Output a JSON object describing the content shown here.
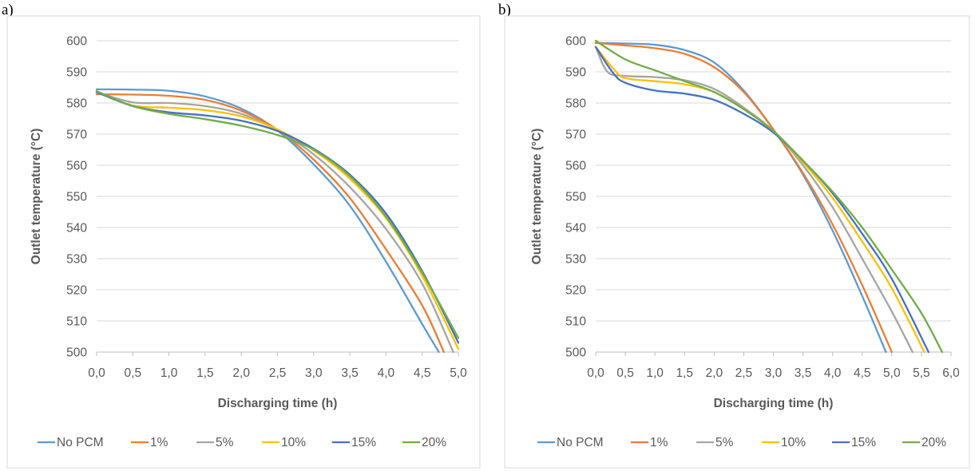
{
  "panels": [
    {
      "letter": "a)",
      "chart_data": {
        "type": "line",
        "title": "",
        "xlabel": "Discharging time (h)",
        "ylabel": "Outlet temperature (°C)",
        "xlim": [
          0,
          5
        ],
        "ylim": [
          500,
          600
        ],
        "xticks": [
          0,
          0.5,
          1,
          1.5,
          2,
          2.5,
          3,
          3.5,
          4,
          4.5,
          5
        ],
        "xtick_labels": [
          "0,0",
          "0,5",
          "1,0",
          "1,5",
          "2,0",
          "2,5",
          "3,0",
          "3,5",
          "4,0",
          "4,5",
          "5,0"
        ],
        "yticks": [
          500,
          510,
          520,
          530,
          540,
          550,
          560,
          570,
          580,
          590,
          600
        ],
        "ytick_labels": [
          "500",
          "510",
          "520",
          "530",
          "540",
          "550",
          "560",
          "570",
          "580",
          "590",
          "600"
        ],
        "grid": "horizontal",
        "legend_position": "bottom",
        "series": [
          {
            "name": "No PCM",
            "color": "#5b9bd5",
            "x": [
              0,
              0.5,
              1.0,
              1.5,
              2.0,
              2.5,
              3.0,
              3.5,
              4.0,
              4.5,
              4.73
            ],
            "y": [
              584.4,
              584.3,
              583.9,
              582.1,
              578.2,
              571.2,
              560.3,
              547.0,
              529.0,
              509.0,
              500
            ]
          },
          {
            "name": "1%",
            "color": "#ed7d31",
            "x": [
              0,
              0.5,
              1.0,
              1.5,
              2.0,
              2.5,
              3.0,
              3.5,
              4.0,
              4.5,
              4.8
            ],
            "y": [
              582.8,
              582.7,
              582.3,
              581.0,
              577.5,
              571.4,
              561.8,
              549.5,
              533.0,
              515.0,
              500
            ]
          },
          {
            "name": "5%",
            "color": "#a5a5a5",
            "x": [
              0,
              0.5,
              1.0,
              1.5,
              2.0,
              2.5,
              3.0,
              3.5,
              4.0,
              4.5,
              4.93
            ],
            "y": [
              583.5,
              580.2,
              580.0,
              579.0,
              576.5,
              571.2,
              563.5,
              553.0,
              539.5,
              522.0,
              500
            ]
          },
          {
            "name": "10%",
            "color": "#ffc000",
            "x": [
              0,
              0.5,
              1.0,
              1.5,
              2.0,
              2.5,
              3.0,
              3.5,
              4.0,
              4.5,
              5.0
            ],
            "y": [
              583.5,
              579.2,
              578.5,
              577.7,
              575.7,
              571.5,
              564.8,
              555.7,
              543.0,
              524.5,
              501
            ]
          },
          {
            "name": "15%",
            "color": "#4472c4",
            "x": [
              0,
              0.5,
              1.0,
              1.5,
              2.0,
              2.5,
              3.0,
              3.5,
              4.0,
              4.5,
              5.0
            ],
            "y": [
              583.5,
              579.0,
              577.0,
              576.0,
              574.3,
              571.0,
              565.3,
              557.0,
              544.5,
              526.0,
              503.0
            ]
          },
          {
            "name": "20%",
            "color": "#70ad47",
            "x": [
              0,
              0.5,
              1.0,
              1.5,
              2.0,
              2.5,
              3.0,
              3.5,
              4.0,
              4.5,
              5.0
            ],
            "y": [
              583.8,
              579.0,
              576.5,
              574.8,
              572.7,
              569.7,
              565.0,
              556.5,
              543.5,
              525.5,
              504.5
            ]
          }
        ]
      }
    },
    {
      "letter": "b)",
      "chart_data": {
        "type": "line",
        "title": "",
        "xlabel": "Discharging time (h)",
        "ylabel": "Outlet temperature (°C)",
        "xlim": [
          0,
          6
        ],
        "ylim": [
          500,
          600
        ],
        "xticks": [
          0,
          0.5,
          1,
          1.5,
          2,
          2.5,
          3,
          3.5,
          4,
          4.5,
          5,
          5.5,
          6
        ],
        "xtick_labels": [
          "0,0",
          "0,5",
          "1,0",
          "1,5",
          "2,0",
          "2,5",
          "3,0",
          "3,5",
          "4,0",
          "4,5",
          "5,0",
          "5,5",
          "6,0"
        ],
        "yticks": [
          500,
          510,
          520,
          530,
          540,
          550,
          560,
          570,
          580,
          590,
          600
        ],
        "ytick_labels": [
          "500",
          "510",
          "520",
          "530",
          "540",
          "550",
          "560",
          "570",
          "580",
          "590",
          "600"
        ],
        "grid": "horizontal",
        "legend_position": "bottom",
        "series": [
          {
            "name": "No PCM",
            "color": "#5b9bd5",
            "x": [
              0,
              0.5,
              1.0,
              1.5,
              2.0,
              2.5,
              3.0,
              3.5,
              4.0,
              4.5,
              4.9
            ],
            "y": [
              599.3,
              599.1,
              598.7,
              597.0,
              593.0,
              584.0,
              571.5,
              557.0,
              539.0,
              518.0,
              500
            ]
          },
          {
            "name": "1%",
            "color": "#ed7d31",
            "x": [
              0,
              0.5,
              1.0,
              1.5,
              2.0,
              2.5,
              3.0,
              3.5,
              4.0,
              4.5,
              5.0
            ],
            "y": [
              599.3,
              598.5,
              597.6,
              595.8,
              591.5,
              583.5,
              571.5,
              557.5,
              541.0,
              521.5,
              500
            ]
          },
          {
            "name": "5%",
            "color": "#a5a5a5",
            "x": [
              0,
              0.2,
              0.5,
              1.0,
              1.5,
              2.0,
              2.5,
              3.0,
              3.5,
              4.0,
              4.5,
              5.0,
              5.35
            ],
            "y": [
              598.0,
              590.0,
              588.7,
              588.3,
              587.3,
              584.5,
              578.5,
              571.0,
              560.0,
              546.5,
              530.0,
              513.0,
              500
            ]
          },
          {
            "name": "10%",
            "color": "#ffc000",
            "x": [
              0,
              0.3,
              0.5,
              1.0,
              1.5,
              2.0,
              2.5,
              3.0,
              3.5,
              4.0,
              4.5,
              5.0,
              5.55
            ],
            "y": [
              598.0,
              591.0,
              588.0,
              587.0,
              586.0,
              583.5,
              578.0,
              571.0,
              561.0,
              549.5,
              535.5,
              520.5,
              500
            ]
          },
          {
            "name": "15%",
            "color": "#4472c4",
            "x": [
              0,
              0.3,
              0.5,
              1.0,
              1.5,
              2.0,
              2.5,
              3.0,
              3.5,
              4.0,
              4.5,
              5.0,
              5.62
            ],
            "y": [
              598.0,
              589.5,
              586.5,
              584.0,
              583.0,
              581.0,
              576.5,
              570.5,
              561.5,
              551.0,
              538.0,
              523.5,
              500
            ]
          },
          {
            "name": "20%",
            "color": "#70ad47",
            "x": [
              0,
              0.5,
              1.0,
              1.5,
              2.0,
              2.5,
              3.0,
              3.5,
              4.0,
              4.5,
              5.0,
              5.5,
              5.85
            ],
            "y": [
              600.0,
              594.0,
              590.5,
              587.0,
              583.5,
              578.0,
              571.0,
              561.5,
              551.5,
              540.0,
              526.5,
              512.5,
              500
            ]
          }
        ]
      }
    }
  ]
}
